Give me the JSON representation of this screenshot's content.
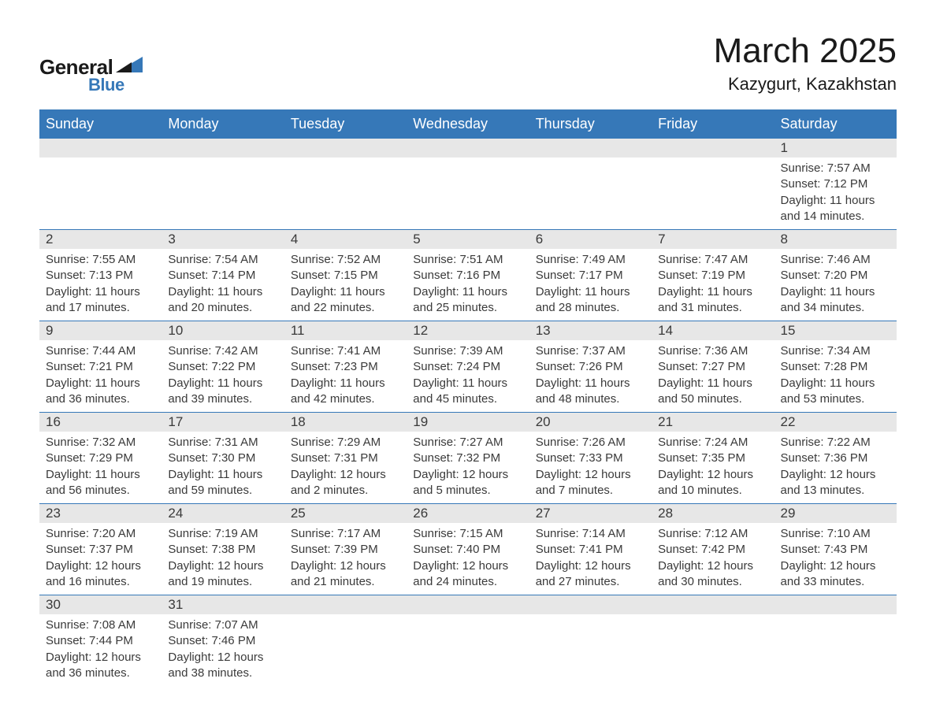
{
  "logo": {
    "text1": "General",
    "text2": "Blue"
  },
  "title": "March 2025",
  "location": "Kazygurt, Kazakhstan",
  "colors": {
    "header_bg": "#3678b8",
    "header_text": "#ffffff",
    "daynum_bg": "#e7e7e7",
    "text": "#3a3a3a",
    "row_border": "#3678b8",
    "page_bg": "#ffffff",
    "logo_blue": "#3678b8"
  },
  "weekdays": [
    "Sunday",
    "Monday",
    "Tuesday",
    "Wednesday",
    "Thursday",
    "Friday",
    "Saturday"
  ],
  "weeks": [
    [
      {
        "n": "",
        "sunrise": "",
        "sunset": "",
        "daylight": ""
      },
      {
        "n": "",
        "sunrise": "",
        "sunset": "",
        "daylight": ""
      },
      {
        "n": "",
        "sunrise": "",
        "sunset": "",
        "daylight": ""
      },
      {
        "n": "",
        "sunrise": "",
        "sunset": "",
        "daylight": ""
      },
      {
        "n": "",
        "sunrise": "",
        "sunset": "",
        "daylight": ""
      },
      {
        "n": "",
        "sunrise": "",
        "sunset": "",
        "daylight": ""
      },
      {
        "n": "1",
        "sunrise": "Sunrise: 7:57 AM",
        "sunset": "Sunset: 7:12 PM",
        "daylight": "Daylight: 11 hours and 14 minutes."
      }
    ],
    [
      {
        "n": "2",
        "sunrise": "Sunrise: 7:55 AM",
        "sunset": "Sunset: 7:13 PM",
        "daylight": "Daylight: 11 hours and 17 minutes."
      },
      {
        "n": "3",
        "sunrise": "Sunrise: 7:54 AM",
        "sunset": "Sunset: 7:14 PM",
        "daylight": "Daylight: 11 hours and 20 minutes."
      },
      {
        "n": "4",
        "sunrise": "Sunrise: 7:52 AM",
        "sunset": "Sunset: 7:15 PM",
        "daylight": "Daylight: 11 hours and 22 minutes."
      },
      {
        "n": "5",
        "sunrise": "Sunrise: 7:51 AM",
        "sunset": "Sunset: 7:16 PM",
        "daylight": "Daylight: 11 hours and 25 minutes."
      },
      {
        "n": "6",
        "sunrise": "Sunrise: 7:49 AM",
        "sunset": "Sunset: 7:17 PM",
        "daylight": "Daylight: 11 hours and 28 minutes."
      },
      {
        "n": "7",
        "sunrise": "Sunrise: 7:47 AM",
        "sunset": "Sunset: 7:19 PM",
        "daylight": "Daylight: 11 hours and 31 minutes."
      },
      {
        "n": "8",
        "sunrise": "Sunrise: 7:46 AM",
        "sunset": "Sunset: 7:20 PM",
        "daylight": "Daylight: 11 hours and 34 minutes."
      }
    ],
    [
      {
        "n": "9",
        "sunrise": "Sunrise: 7:44 AM",
        "sunset": "Sunset: 7:21 PM",
        "daylight": "Daylight: 11 hours and 36 minutes."
      },
      {
        "n": "10",
        "sunrise": "Sunrise: 7:42 AM",
        "sunset": "Sunset: 7:22 PM",
        "daylight": "Daylight: 11 hours and 39 minutes."
      },
      {
        "n": "11",
        "sunrise": "Sunrise: 7:41 AM",
        "sunset": "Sunset: 7:23 PM",
        "daylight": "Daylight: 11 hours and 42 minutes."
      },
      {
        "n": "12",
        "sunrise": "Sunrise: 7:39 AM",
        "sunset": "Sunset: 7:24 PM",
        "daylight": "Daylight: 11 hours and 45 minutes."
      },
      {
        "n": "13",
        "sunrise": "Sunrise: 7:37 AM",
        "sunset": "Sunset: 7:26 PM",
        "daylight": "Daylight: 11 hours and 48 minutes."
      },
      {
        "n": "14",
        "sunrise": "Sunrise: 7:36 AM",
        "sunset": "Sunset: 7:27 PM",
        "daylight": "Daylight: 11 hours and 50 minutes."
      },
      {
        "n": "15",
        "sunrise": "Sunrise: 7:34 AM",
        "sunset": "Sunset: 7:28 PM",
        "daylight": "Daylight: 11 hours and 53 minutes."
      }
    ],
    [
      {
        "n": "16",
        "sunrise": "Sunrise: 7:32 AM",
        "sunset": "Sunset: 7:29 PM",
        "daylight": "Daylight: 11 hours and 56 minutes."
      },
      {
        "n": "17",
        "sunrise": "Sunrise: 7:31 AM",
        "sunset": "Sunset: 7:30 PM",
        "daylight": "Daylight: 11 hours and 59 minutes."
      },
      {
        "n": "18",
        "sunrise": "Sunrise: 7:29 AM",
        "sunset": "Sunset: 7:31 PM",
        "daylight": "Daylight: 12 hours and 2 minutes."
      },
      {
        "n": "19",
        "sunrise": "Sunrise: 7:27 AM",
        "sunset": "Sunset: 7:32 PM",
        "daylight": "Daylight: 12 hours and 5 minutes."
      },
      {
        "n": "20",
        "sunrise": "Sunrise: 7:26 AM",
        "sunset": "Sunset: 7:33 PM",
        "daylight": "Daylight: 12 hours and 7 minutes."
      },
      {
        "n": "21",
        "sunrise": "Sunrise: 7:24 AM",
        "sunset": "Sunset: 7:35 PM",
        "daylight": "Daylight: 12 hours and 10 minutes."
      },
      {
        "n": "22",
        "sunrise": "Sunrise: 7:22 AM",
        "sunset": "Sunset: 7:36 PM",
        "daylight": "Daylight: 12 hours and 13 minutes."
      }
    ],
    [
      {
        "n": "23",
        "sunrise": "Sunrise: 7:20 AM",
        "sunset": "Sunset: 7:37 PM",
        "daylight": "Daylight: 12 hours and 16 minutes."
      },
      {
        "n": "24",
        "sunrise": "Sunrise: 7:19 AM",
        "sunset": "Sunset: 7:38 PM",
        "daylight": "Daylight: 12 hours and 19 minutes."
      },
      {
        "n": "25",
        "sunrise": "Sunrise: 7:17 AM",
        "sunset": "Sunset: 7:39 PM",
        "daylight": "Daylight: 12 hours and 21 minutes."
      },
      {
        "n": "26",
        "sunrise": "Sunrise: 7:15 AM",
        "sunset": "Sunset: 7:40 PM",
        "daylight": "Daylight: 12 hours and 24 minutes."
      },
      {
        "n": "27",
        "sunrise": "Sunrise: 7:14 AM",
        "sunset": "Sunset: 7:41 PM",
        "daylight": "Daylight: 12 hours and 27 minutes."
      },
      {
        "n": "28",
        "sunrise": "Sunrise: 7:12 AM",
        "sunset": "Sunset: 7:42 PM",
        "daylight": "Daylight: 12 hours and 30 minutes."
      },
      {
        "n": "29",
        "sunrise": "Sunrise: 7:10 AM",
        "sunset": "Sunset: 7:43 PM",
        "daylight": "Daylight: 12 hours and 33 minutes."
      }
    ],
    [
      {
        "n": "30",
        "sunrise": "Sunrise: 7:08 AM",
        "sunset": "Sunset: 7:44 PM",
        "daylight": "Daylight: 12 hours and 36 minutes."
      },
      {
        "n": "31",
        "sunrise": "Sunrise: 7:07 AM",
        "sunset": "Sunset: 7:46 PM",
        "daylight": "Daylight: 12 hours and 38 minutes."
      },
      {
        "n": "",
        "sunrise": "",
        "sunset": "",
        "daylight": ""
      },
      {
        "n": "",
        "sunrise": "",
        "sunset": "",
        "daylight": ""
      },
      {
        "n": "",
        "sunrise": "",
        "sunset": "",
        "daylight": ""
      },
      {
        "n": "",
        "sunrise": "",
        "sunset": "",
        "daylight": ""
      },
      {
        "n": "",
        "sunrise": "",
        "sunset": "",
        "daylight": ""
      }
    ]
  ]
}
